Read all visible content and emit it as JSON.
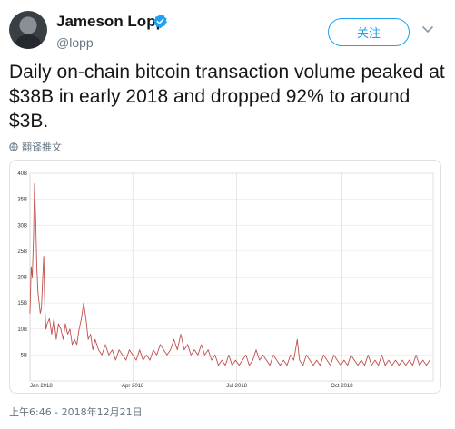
{
  "tweet": {
    "author_name": "Jameson Lopp",
    "handle": "@lopp",
    "follow_label": "关注",
    "text": "Daily on-chain bitcoin transaction volume peaked at $38B in early 2018 and dropped 92% to around $3B.",
    "translate_label": "翻译推文",
    "timestamp": "上午6:46 - 2018年12月21日"
  },
  "colors": {
    "accent": "#1da1f2",
    "series": "#c0504d"
  },
  "icons": [
    "verified-badge-icon",
    "chevron-down-icon",
    "globe-icon"
  ],
  "chart_data": {
    "type": "line",
    "x_ticks": [
      "Jan 2018",
      "Apr 2018",
      "Jul 2018",
      "Oct 2018"
    ],
    "y_ticks": [
      "5B",
      "10B",
      "15B",
      "20B",
      "25B",
      "30B",
      "35B",
      "40B"
    ],
    "ylim": [
      0,
      40
    ],
    "xlim": [
      "2018-01-01",
      "2018-12-20"
    ],
    "grid": true,
    "series": [
      {
        "values_approx": [
          [
            0,
            13
          ],
          [
            1,
            22
          ],
          [
            2,
            20
          ],
          [
            3,
            27
          ],
          [
            4,
            38
          ],
          [
            5,
            31
          ],
          [
            6,
            22
          ],
          [
            7,
            17
          ],
          [
            8,
            15
          ],
          [
            9,
            13
          ],
          [
            10,
            14
          ],
          [
            11,
            19
          ],
          [
            12,
            24
          ],
          [
            13,
            14
          ],
          [
            14,
            10
          ],
          [
            15,
            11
          ],
          [
            17,
            12
          ],
          [
            19,
            9
          ],
          [
            21,
            12
          ],
          [
            23,
            8
          ],
          [
            25,
            11
          ],
          [
            27,
            10
          ],
          [
            29,
            8
          ],
          [
            31,
            11
          ],
          [
            33,
            9
          ],
          [
            35,
            10
          ],
          [
            37,
            7
          ],
          [
            39,
            8
          ],
          [
            41,
            7
          ],
          [
            43,
            10
          ],
          [
            45,
            12
          ],
          [
            47,
            15
          ],
          [
            49,
            12
          ],
          [
            51,
            8
          ],
          [
            53,
            9
          ],
          [
            55,
            6
          ],
          [
            57,
            8
          ],
          [
            60,
            6
          ],
          [
            63,
            5
          ],
          [
            66,
            7
          ],
          [
            69,
            5
          ],
          [
            72,
            6
          ],
          [
            75,
            4
          ],
          [
            78,
            6
          ],
          [
            81,
            5
          ],
          [
            84,
            4
          ],
          [
            87,
            6
          ],
          [
            90,
            5
          ],
          [
            93,
            4
          ],
          [
            96,
            6
          ],
          [
            99,
            4
          ],
          [
            102,
            5
          ],
          [
            105,
            4
          ],
          [
            108,
            6
          ],
          [
            111,
            5
          ],
          [
            114,
            7
          ],
          [
            117,
            6
          ],
          [
            120,
            5
          ],
          [
            123,
            6
          ],
          [
            126,
            8
          ],
          [
            129,
            6
          ],
          [
            132,
            9
          ],
          [
            135,
            6
          ],
          [
            138,
            7
          ],
          [
            141,
            5
          ],
          [
            144,
            6
          ],
          [
            147,
            5
          ],
          [
            150,
            7
          ],
          [
            153,
            5
          ],
          [
            156,
            6
          ],
          [
            159,
            4
          ],
          [
            162,
            5
          ],
          [
            165,
            3
          ],
          [
            168,
            4
          ],
          [
            171,
            3
          ],
          [
            174,
            5
          ],
          [
            177,
            3
          ],
          [
            180,
            4
          ],
          [
            183,
            3
          ],
          [
            186,
            4
          ],
          [
            189,
            5
          ],
          [
            192,
            3
          ],
          [
            195,
            4
          ],
          [
            198,
            6
          ],
          [
            201,
            4
          ],
          [
            204,
            5
          ],
          [
            207,
            4
          ],
          [
            210,
            3
          ],
          [
            213,
            5
          ],
          [
            216,
            4
          ],
          [
            219,
            3
          ],
          [
            222,
            4
          ],
          [
            225,
            3
          ],
          [
            228,
            5
          ],
          [
            231,
            4
          ],
          [
            234,
            8
          ],
          [
            236,
            4
          ],
          [
            239,
            3
          ],
          [
            242,
            5
          ],
          [
            245,
            4
          ],
          [
            248,
            3
          ],
          [
            251,
            4
          ],
          [
            254,
            3
          ],
          [
            257,
            5
          ],
          [
            260,
            4
          ],
          [
            263,
            3
          ],
          [
            266,
            5
          ],
          [
            269,
            4
          ],
          [
            272,
            3
          ],
          [
            275,
            4
          ],
          [
            278,
            3
          ],
          [
            281,
            5
          ],
          [
            284,
            4
          ],
          [
            287,
            3
          ],
          [
            290,
            4
          ],
          [
            293,
            3
          ],
          [
            296,
            5
          ],
          [
            299,
            3
          ],
          [
            302,
            4
          ],
          [
            305,
            3
          ],
          [
            308,
            5
          ],
          [
            311,
            3
          ],
          [
            314,
            4
          ],
          [
            317,
            3
          ],
          [
            320,
            4
          ],
          [
            323,
            3
          ],
          [
            326,
            4
          ],
          [
            329,
            3
          ],
          [
            332,
            4
          ],
          [
            335,
            3
          ],
          [
            338,
            5
          ],
          [
            341,
            3
          ],
          [
            344,
            4
          ],
          [
            347,
            3
          ],
          [
            350,
            4
          ]
        ]
      }
    ]
  }
}
